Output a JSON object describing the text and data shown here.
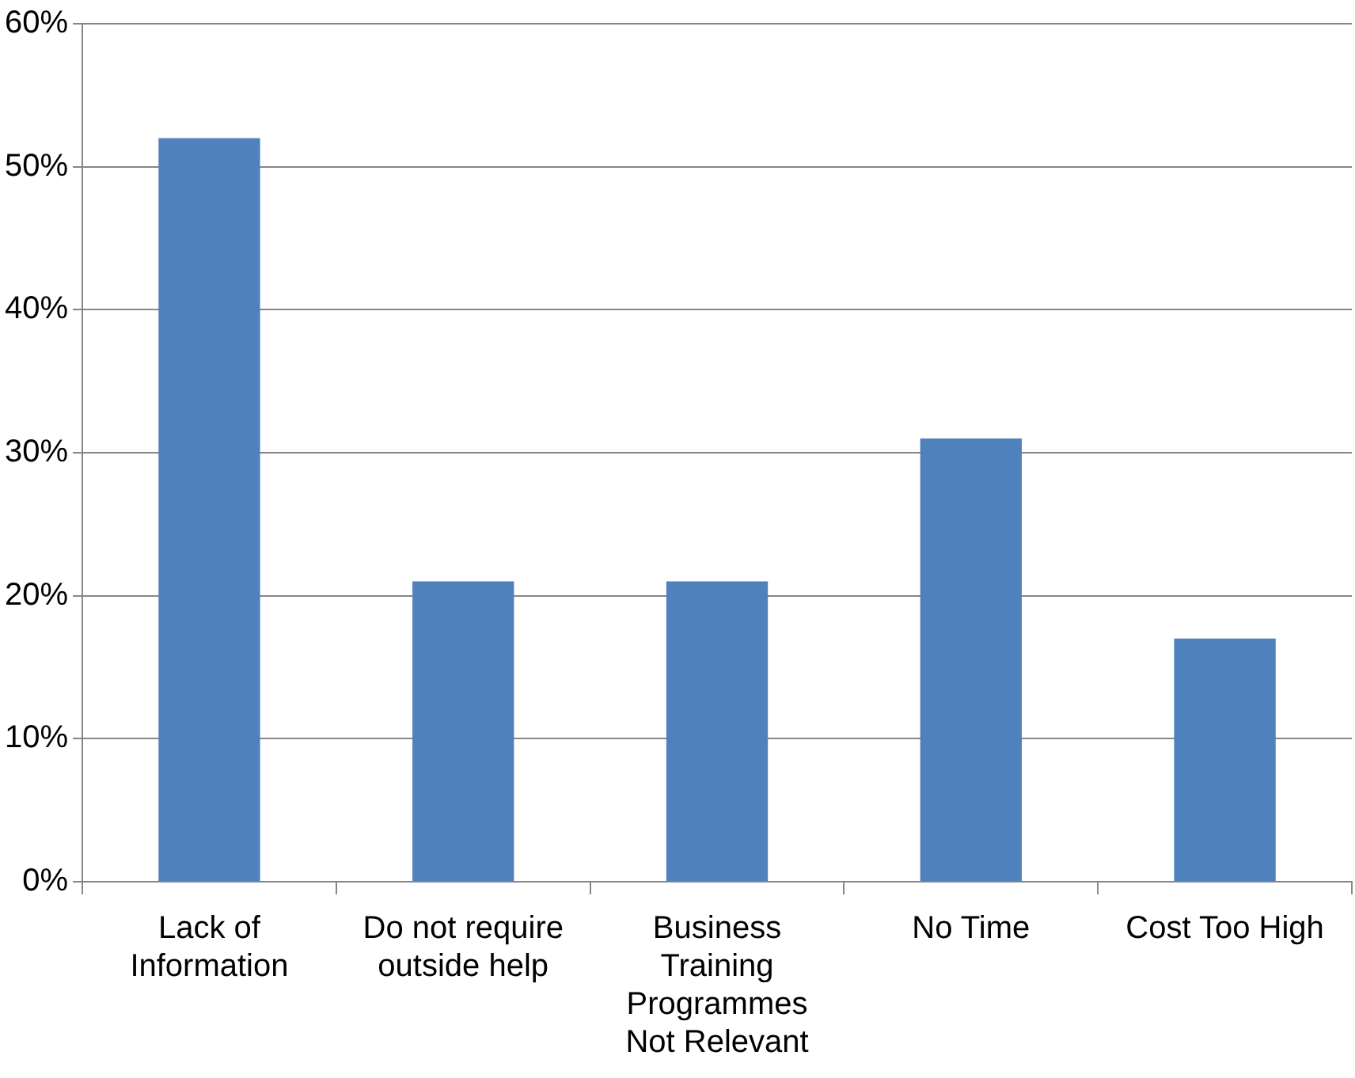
{
  "chart_data": {
    "type": "bar",
    "categories": [
      "Lack of Information",
      "Do not require outside help",
      "Business Training Programmes Not Relevant",
      "No Time",
      "Cost Too High"
    ],
    "values": [
      52,
      21,
      21,
      31,
      17
    ],
    "color": "#4f81bd",
    "ylim": [
      0,
      60
    ],
    "yticks": [
      {
        "value": 0,
        "label": "0%"
      },
      {
        "value": 10,
        "label": "10%"
      },
      {
        "value": 20,
        "label": "20%"
      },
      {
        "value": 30,
        "label": "30%"
      },
      {
        "value": 40,
        "label": "40%"
      },
      {
        "value": 50,
        "label": "50%"
      },
      {
        "value": 60,
        "label": "60%"
      }
    ],
    "grid": "y",
    "legend": false
  }
}
